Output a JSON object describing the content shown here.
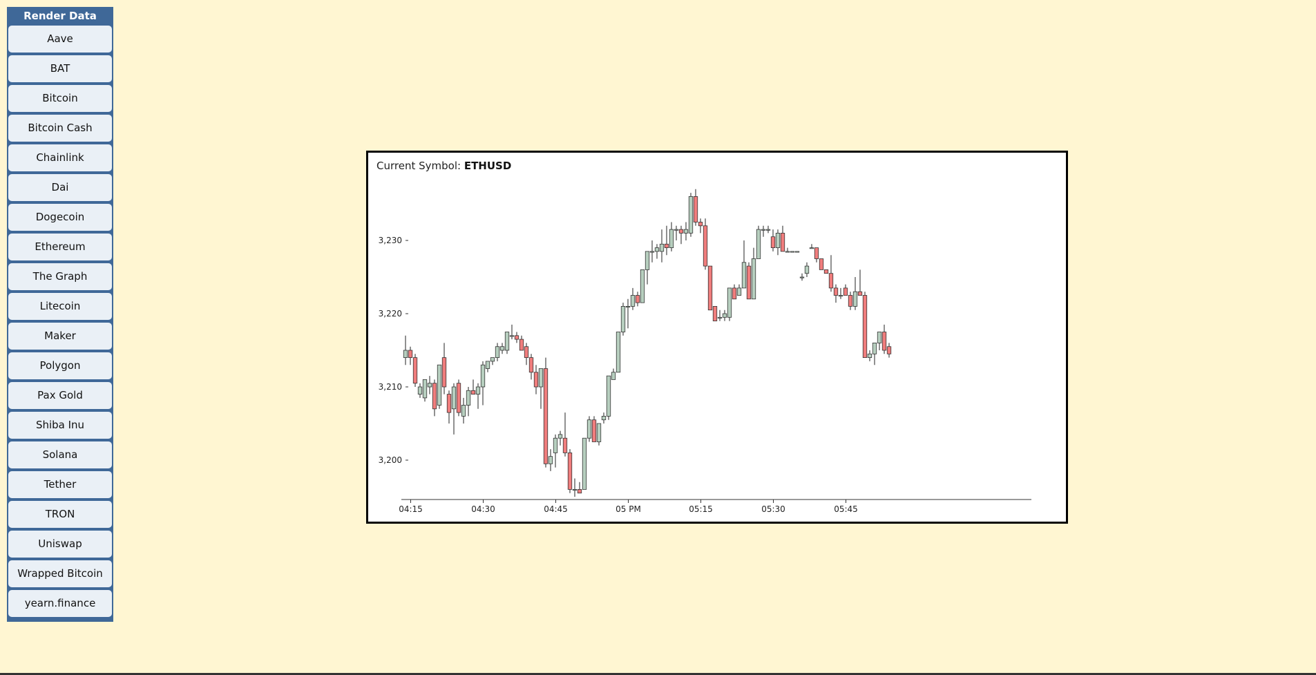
{
  "sidebar": {
    "header": "Render Data",
    "items": [
      "Aave",
      "BAT",
      "Bitcoin",
      "Bitcoin Cash",
      "Chainlink",
      "Dai",
      "Dogecoin",
      "Ethereum",
      "The Graph",
      "Litecoin",
      "Maker",
      "Polygon",
      "Pax Gold",
      "Shiba Inu",
      "Solana",
      "Tether",
      "TRON",
      "Uniswap",
      "Wrapped Bitcoin",
      "yearn.finance"
    ]
  },
  "chart": {
    "symbol_label": "Current Symbol:",
    "symbol": "ETHUSD"
  },
  "colors": {
    "up": "#b7cfbf",
    "down": "#f07d7d",
    "background": "#fff6d2",
    "sidebar": "#3f6898"
  },
  "chart_data": {
    "type": "candlestick",
    "title": "Current Symbol: ETHUSD",
    "interval_minutes": 1,
    "start_time": "04:14",
    "ylim": [
      3194,
      3237
    ],
    "yticks": [
      3200,
      3210,
      3220,
      3230
    ],
    "ytick_labels": [
      "3,200",
      "3,210",
      "3,220",
      "3,230"
    ],
    "xtick_labels": [
      "04:15",
      "04:30",
      "04:45",
      "05 PM",
      "05:15",
      "05:30",
      "05:45"
    ],
    "candles": [
      [
        3214,
        3217,
        3213,
        3215
      ],
      [
        3215,
        3215.5,
        3213,
        3214
      ],
      [
        3214,
        3214.5,
        3210,
        3210.5
      ],
      [
        3209,
        3210.5,
        3208.5,
        3210
      ],
      [
        3208.5,
        3211,
        3208,
        3211
      ],
      [
        3210,
        3211.5,
        3209,
        3210.5
      ],
      [
        3210.5,
        3211,
        3206,
        3207
      ],
      [
        3207.5,
        3213,
        3207,
        3213
      ],
      [
        3214,
        3216,
        3209,
        3210
      ],
      [
        3209,
        3209.5,
        3205,
        3206.5
      ],
      [
        3207,
        3210.5,
        3203.5,
        3210
      ],
      [
        3210.5,
        3211,
        3206,
        3206.5
      ],
      [
        3206,
        3208.5,
        3205,
        3207.5
      ],
      [
        3207.5,
        3210,
        3206,
        3209.5
      ],
      [
        3209.5,
        3211,
        3209,
        3209
      ],
      [
        3209,
        3210.5,
        3207,
        3210
      ],
      [
        3210,
        3213.5,
        3207.5,
        3213
      ],
      [
        3212.5,
        3213.5,
        3212,
        3213.5
      ],
      [
        3213.5,
        3214,
        3213,
        3214
      ],
      [
        3214,
        3216,
        3213.5,
        3215.5
      ],
      [
        3215,
        3216,
        3214.5,
        3215.5
      ],
      [
        3215,
        3217.5,
        3214.5,
        3217.5
      ],
      [
        3217,
        3218.5,
        3216.5,
        3217
      ],
      [
        3217,
        3217.5,
        3216,
        3216.5
      ],
      [
        3216.5,
        3217,
        3215,
        3215
      ],
      [
        3215.5,
        3216,
        3213,
        3214
      ],
      [
        3214,
        3214.5,
        3211,
        3212
      ],
      [
        3212,
        3213,
        3209,
        3210
      ],
      [
        3210,
        3212.5,
        3207,
        3212.5
      ],
      [
        3212.5,
        3214,
        3199,
        3199.5
      ],
      [
        3199.5,
        3201.5,
        3198.5,
        3200.5
      ],
      [
        3201,
        3203.5,
        3199,
        3203
      ],
      [
        3203,
        3204,
        3202,
        3203.5
      ],
      [
        3203,
        3206.5,
        3200.5,
        3201
      ],
      [
        3201,
        3201.5,
        3195.5,
        3196
      ],
      [
        3196,
        3197.5,
        3195,
        3196
      ],
      [
        3196,
        3197,
        3195.5,
        3195.5
      ],
      [
        3196,
        3203,
        3196,
        3203
      ],
      [
        3203,
        3206,
        3202.5,
        3205.5
      ],
      [
        3205.5,
        3206,
        3202.5,
        3202.5
      ],
      [
        3202.5,
        3205,
        3202,
        3205
      ],
      [
        3205.5,
        3206.5,
        3205,
        3206
      ],
      [
        3206,
        3211.5,
        3205.5,
        3211.5
      ],
      [
        3211,
        3212.5,
        3211,
        3212
      ],
      [
        3212,
        3217.5,
        3212,
        3217.5
      ],
      [
        3217.5,
        3221.5,
        3217,
        3221
      ],
      [
        3221,
        3222,
        3218,
        3221
      ],
      [
        3221,
        3223.5,
        3220.5,
        3222.5
      ],
      [
        3222.5,
        3223,
        3221,
        3221.5
      ],
      [
        3221.5,
        3226,
        3221.5,
        3226
      ],
      [
        3226,
        3228.5,
        3224,
        3228.5
      ],
      [
        3228.5,
        3230,
        3227,
        3228.5
      ],
      [
        3228.5,
        3229.5,
        3227.5,
        3229
      ],
      [
        3228.5,
        3231.5,
        3227,
        3229.5
      ],
      [
        3229.5,
        3232,
        3228,
        3229
      ],
      [
        3229,
        3232.5,
        3228.5,
        3231.5
      ],
      [
        3231.5,
        3232,
        3230,
        3231.5
      ],
      [
        3231.5,
        3232,
        3229.5,
        3231
      ],
      [
        3231,
        3232.5,
        3230,
        3231.5
      ],
      [
        3231,
        3236.5,
        3230.5,
        3236
      ],
      [
        3236,
        3237,
        3232,
        3232.5
      ],
      [
        3232.5,
        3233,
        3231,
        3232
      ],
      [
        3232,
        3233,
        3226,
        3226.5
      ],
      [
        3226.5,
        3226.5,
        3220.5,
        3220.5
      ],
      [
        3221,
        3221,
        3219,
        3219
      ],
      [
        3219.5,
        3220.5,
        3219,
        3219.5
      ],
      [
        3219.5,
        3220.5,
        3219,
        3220
      ],
      [
        3219.5,
        3223.5,
        3219,
        3223.5
      ],
      [
        3223.5,
        3224,
        3222,
        3222
      ],
      [
        3222.5,
        3224,
        3222.5,
        3223.5
      ],
      [
        3223.5,
        3230,
        3223.5,
        3227
      ],
      [
        3226.5,
        3227,
        3222,
        3222
      ],
      [
        3222,
        3229,
        3222,
        3227.5
      ],
      [
        3227.5,
        3232,
        3227.5,
        3231.5
      ],
      [
        3231.5,
        3232,
        3230.5,
        3231.5
      ],
      [
        3231.5,
        3232,
        3231,
        3231.5
      ],
      [
        3230.5,
        3231.5,
        3228.5,
        3229
      ],
      [
        3229,
        3231.5,
        3228,
        3231
      ],
      [
        3231,
        3232,
        3228.5,
        3228.5
      ],
      [
        3228.5,
        3229,
        3228.5,
        3228.5
      ],
      [
        3228.5,
        3228.5,
        3228.5,
        3228.5
      ],
      [
        3228.5,
        3228.5,
        3228.5,
        3228.5
      ],
      [
        3225,
        3225.5,
        3224.5,
        3225
      ],
      [
        3225.5,
        3227,
        3225,
        3226.5
      ],
      [
        3229,
        3229.5,
        3229,
        3229
      ],
      [
        3229,
        3229,
        3227,
        3227.5
      ],
      [
        3227.5,
        3227.5,
        3226,
        3226
      ],
      [
        3226,
        3226,
        3225.5,
        3225.5
      ],
      [
        3225.5,
        3228,
        3223,
        3223.5
      ],
      [
        3223.5,
        3224,
        3221.5,
        3222.5
      ],
      [
        3222.5,
        3223.5,
        3222,
        3222.5
      ],
      [
        3223.5,
        3224,
        3222.5,
        3222.5
      ],
      [
        3222.5,
        3223,
        3220.5,
        3221
      ],
      [
        3221,
        3225,
        3220.5,
        3223
      ],
      [
        3223,
        3226,
        3222.5,
        3222.5
      ],
      [
        3222.5,
        3223,
        3214,
        3214
      ],
      [
        3214,
        3215,
        3213.5,
        3214.5
      ],
      [
        3214.5,
        3216,
        3213,
        3216
      ],
      [
        3216,
        3217.5,
        3215,
        3217.5
      ],
      [
        3217.5,
        3218.5,
        3214.5,
        3215
      ],
      [
        3215.5,
        3216,
        3214,
        3214.5
      ]
    ]
  }
}
